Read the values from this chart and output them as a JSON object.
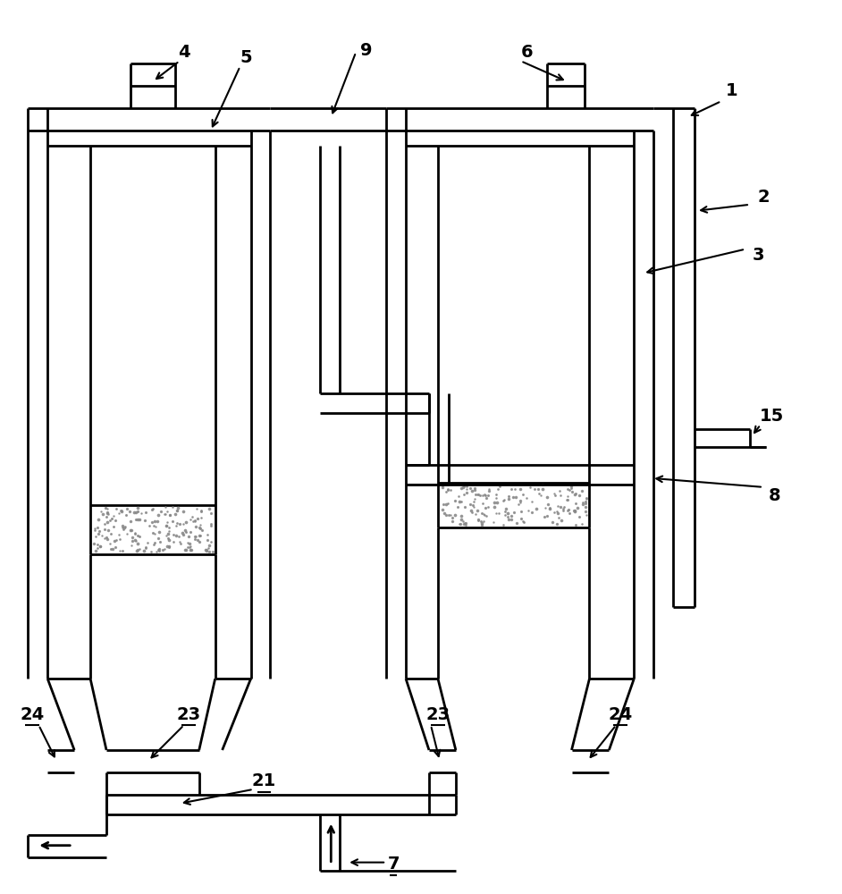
{
  "bg_color": "#ffffff",
  "lw": 2.0,
  "lw_thin": 1.5,
  "figsize": [
    9.42,
    10.0
  ],
  "dpi": 100
}
